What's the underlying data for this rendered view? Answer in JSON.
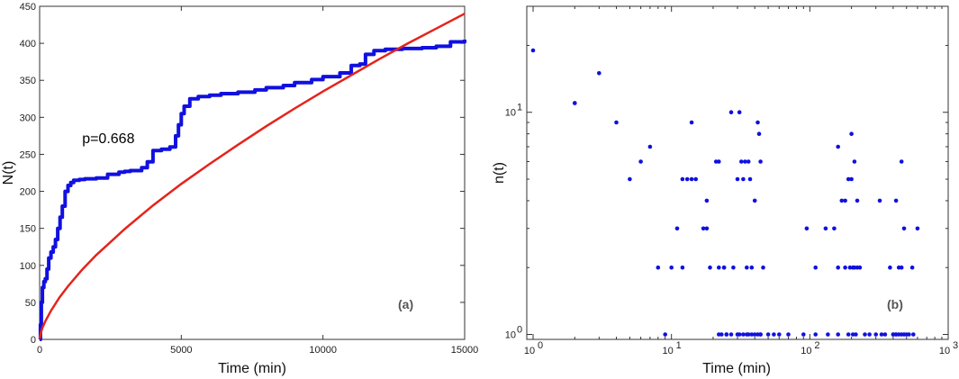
{
  "chart_data": [
    {
      "type": "line",
      "panel_label": "(a)",
      "xlabel": "Time (min)",
      "ylabel": "N(t)",
      "xlim": [
        0,
        15000
      ],
      "ylim": [
        0,
        450
      ],
      "xticks": [
        0,
        5000,
        10000,
        15000
      ],
      "yticks": [
        0,
        50,
        100,
        150,
        200,
        250,
        300,
        350,
        400,
        450
      ],
      "grid": false,
      "annotation": {
        "text": "p=0.668",
        "x": 1500,
        "y": 265
      },
      "series": [
        {
          "color": "#1010e0",
          "x": [
            0,
            30,
            60,
            100,
            150,
            200,
            260,
            320,
            400,
            480,
            560,
            640,
            720,
            800,
            900,
            1000,
            1100,
            1200,
            1400,
            1600,
            2000,
            2400,
            2800,
            3000,
            3200,
            3600,
            3800,
            4000,
            4300,
            4600,
            4800,
            4900,
            5000,
            5100,
            5300,
            5600,
            6000,
            6400,
            7000,
            7600,
            8000,
            8600,
            9000,
            9600,
            10000,
            10600,
            11000,
            11300,
            11500,
            11800,
            12200,
            12800,
            13500,
            14000,
            14500,
            15000
          ],
          "y": [
            0,
            20,
            50,
            70,
            78,
            82,
            95,
            110,
            118,
            125,
            135,
            150,
            165,
            180,
            200,
            208,
            212,
            215,
            216,
            217,
            218,
            223,
            226,
            227,
            228,
            232,
            240,
            255,
            257,
            260,
            275,
            290,
            305,
            315,
            325,
            328,
            330,
            332,
            334,
            337,
            340,
            343,
            347,
            351,
            355,
            360,
            370,
            372,
            385,
            390,
            392,
            393,
            394,
            396,
            402,
            405
          ]
        },
        {
          "color": "#e5231b",
          "type": "fit",
          "exponent": 0.668,
          "x": [
            1,
            15,
            50,
            100,
            200,
            400,
            700,
            1000,
            1500,
            2000,
            3000,
            4000,
            5000,
            6000,
            7000,
            8000,
            9000,
            10000,
            11000,
            12000,
            13000,
            14000,
            15000
          ],
          "y": [
            0.68,
            4.3,
            9.7,
            15.4,
            24.4,
            38.7,
            56.5,
            71.8,
            94.1,
            114,
            149,
            181,
            210,
            237,
            263,
            288,
            312,
            335,
            357,
            379,
            400,
            420,
            440
          ]
        }
      ]
    },
    {
      "type": "scatter",
      "panel_label": "(b)",
      "xlabel": "Time (min)",
      "ylabel": "n(t)",
      "xscale": "log",
      "yscale": "log",
      "xlim": [
        0.9,
        1000
      ],
      "ylim": [
        0.95,
        30
      ],
      "xticks": [
        {
          "value": 1,
          "base": "10",
          "exp": "0"
        },
        {
          "value": 10,
          "base": "10",
          "exp": "1"
        },
        {
          "value": 100,
          "base": "10",
          "exp": "2"
        },
        {
          "value": 1000,
          "base": "10",
          "exp": "3"
        }
      ],
      "yticks": [
        {
          "value": 1,
          "base": "10",
          "exp": "0"
        },
        {
          "value": 10,
          "base": "10",
          "exp": "1"
        }
      ],
      "grid": false,
      "series": [
        {
          "color": "#1010e0",
          "x": [
            1,
            2,
            3,
            4,
            5,
            6,
            7,
            8,
            9,
            10,
            11,
            12,
            13,
            14,
            15,
            17,
            18,
            19,
            21,
            22,
            23,
            24,
            25,
            27,
            28,
            30,
            31,
            32,
            33,
            34,
            35,
            37,
            38,
            40,
            42,
            43,
            44,
            46,
            50,
            55,
            60,
            70,
            90,
            95,
            110,
            130,
            150,
            160,
            170,
            180,
            190,
            200,
            210,
            220,
            230,
            250,
            270,
            300,
            320,
            350,
            380,
            400,
            420,
            440,
            460,
            480,
            500,
            550,
            600,
            2.0,
            12,
            18,
            22,
            25,
            27,
            31,
            35,
            38,
            40,
            44,
            110,
            135,
            160,
            190,
            205,
            215,
            400,
            420,
            440,
            460,
            480,
            520,
            560,
            24,
            14,
            30,
            33,
            36,
            42,
            160,
            180,
            195,
            205,
            210,
            220,
            330,
            420,
            22,
            36,
            44,
            200,
            460
          ],
          "y": [
            19,
            11,
            15,
            9,
            5,
            6,
            7,
            2,
            1,
            2,
            3,
            2,
            5,
            9,
            5,
            3,
            4,
            2,
            6,
            2,
            1,
            2,
            1,
            10,
            2,
            5,
            10,
            6,
            5,
            6,
            2,
            5,
            2,
            4,
            9,
            8,
            1,
            2,
            1,
            1,
            1,
            1,
            1,
            3,
            2,
            3,
            3,
            7,
            4,
            4,
            5,
            8,
            6,
            4,
            2,
            1,
            1,
            1,
            4,
            1,
            2,
            1,
            4,
            2,
            6,
            3,
            1,
            2,
            3,
            11,
            5,
            3,
            1,
            1,
            1,
            1,
            1,
            1,
            1,
            1,
            1,
            1,
            1,
            1,
            1,
            1,
            1,
            1,
            1,
            1,
            1,
            1,
            1,
            2,
            5,
            1,
            1,
            1,
            1,
            2,
            2,
            2,
            2,
            2,
            2,
            1,
            1,
            6,
            6,
            6,
            5,
            2
          ]
        }
      ]
    }
  ]
}
